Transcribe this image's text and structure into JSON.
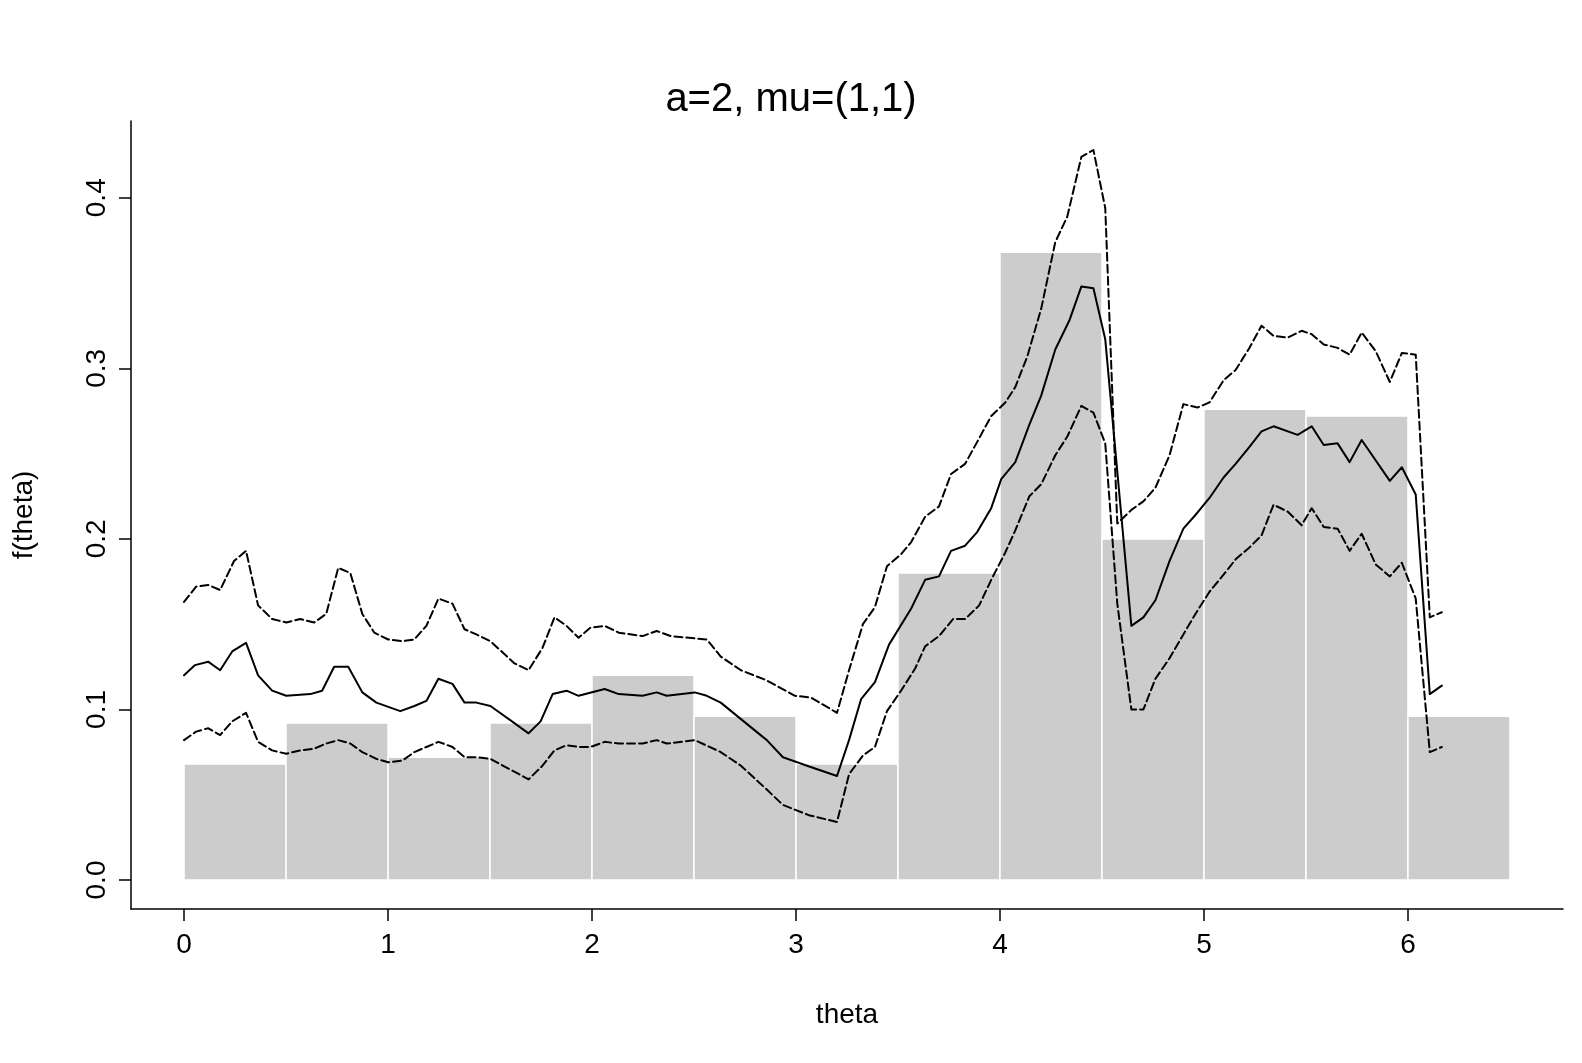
{
  "chart_data": {
    "type": "histogram",
    "title": "a=2, mu=(1,1)",
    "xlabel": "theta",
    "ylabel": "f(theta)",
    "bins": [
      0,
      0.5,
      1,
      1.5,
      2,
      2.5,
      3,
      3.5,
      4,
      4.5,
      5,
      5.5,
      6,
      6.5
    ],
    "values": [
      0.068,
      0.092,
      0.072,
      0.092,
      0.12,
      0.096,
      0.068,
      0.18,
      0.368,
      0.2,
      0.276,
      0.272,
      0.096
    ],
    "color": "#cccccc",
    "series": [
      {
        "type": "line",
        "color": "#000000",
        "line_style": "solid",
        "x": [
          0,
          0.054,
          0.118,
          0.177,
          0.236,
          0.304,
          0.363,
          0.432,
          0.501,
          0.619,
          0.677,
          0.736,
          0.805,
          0.874,
          0.943,
          1.06,
          1.129,
          1.188,
          1.247,
          1.316,
          1.375,
          1.433,
          1.502,
          1.689,
          1.748,
          1.807,
          1.875,
          1.934,
          2.062,
          2.131,
          2.248,
          2.317,
          2.366,
          2.504,
          2.563,
          2.631,
          2.857,
          2.936,
          3.054,
          3.201,
          3.26,
          3.319,
          3.387,
          3.456,
          3.564,
          3.633,
          3.701,
          3.76,
          3.829,
          3.888,
          3.957,
          4.006,
          4.075,
          4.144,
          4.202,
          4.271,
          4.34,
          4.399,
          4.458,
          4.516,
          4.644,
          4.703,
          4.762,
          4.831,
          4.899,
          4.958,
          5.027,
          5.096,
          5.155,
          5.223,
          5.282,
          5.341,
          5.459,
          5.528,
          5.587,
          5.655,
          5.714,
          5.773,
          5.911,
          5.97,
          6.038,
          6.107,
          6.166
        ],
        "values": [
          0.12,
          0.126,
          0.128,
          0.123,
          0.134,
          0.139,
          0.12,
          0.111,
          0.108,
          0.109,
          0.111,
          0.125,
          0.125,
          0.11,
          0.104,
          0.099,
          0.102,
          0.105,
          0.118,
          0.115,
          0.104,
          0.104,
          0.102,
          0.086,
          0.093,
          0.109,
          0.111,
          0.108,
          0.112,
          0.109,
          0.108,
          0.11,
          0.108,
          0.11,
          0.108,
          0.104,
          0.082,
          0.072,
          0.067,
          0.061,
          0.082,
          0.106,
          0.116,
          0.138,
          0.159,
          0.176,
          0.178,
          0.193,
          0.196,
          0.204,
          0.218,
          0.235,
          0.245,
          0.267,
          0.284,
          0.311,
          0.328,
          0.348,
          0.347,
          0.317,
          0.149,
          0.154,
          0.164,
          0.187,
          0.206,
          0.214,
          0.224,
          0.236,
          0.244,
          0.254,
          0.263,
          0.266,
          0.261,
          0.266,
          0.255,
          0.256,
          0.245,
          0.258,
          0.234,
          0.242,
          0.226,
          0.109,
          0.114
        ]
      },
      {
        "type": "line",
        "color": "#000000",
        "line_style": "dashed",
        "x": [
          0,
          0.059,
          0.118,
          0.177,
          0.245,
          0.304,
          0.363,
          0.432,
          0.501,
          0.569,
          0.638,
          0.697,
          0.756,
          0.815,
          0.874,
          0.933,
          1.001,
          1.07,
          1.129,
          1.188,
          1.247,
          1.316,
          1.375,
          1.433,
          1.502,
          1.62,
          1.689,
          1.757,
          1.816,
          1.875,
          1.934,
          1.993,
          2.062,
          2.131,
          2.248,
          2.317,
          2.386,
          2.563,
          2.631,
          2.73,
          2.857,
          2.995,
          3.073,
          3.201,
          3.26,
          3.328,
          3.387,
          3.446,
          3.515,
          3.564,
          3.633,
          3.701,
          3.76,
          3.829,
          3.898,
          3.957,
          4.026,
          4.075,
          4.134,
          4.202,
          4.271,
          4.33,
          4.399,
          4.458,
          4.516,
          4.575,
          4.644,
          4.703,
          4.762,
          4.831,
          4.899,
          4.968,
          5.027,
          5.096,
          5.155,
          5.223,
          5.282,
          5.341,
          5.41,
          5.479,
          5.528,
          5.587,
          5.655,
          5.714,
          5.773,
          5.842,
          5.911,
          5.97,
          6.038,
          6.107,
          6.166
        ],
        "values": [
          0.163,
          0.172,
          0.173,
          0.17,
          0.187,
          0.193,
          0.161,
          0.153,
          0.151,
          0.153,
          0.151,
          0.156,
          0.183,
          0.18,
          0.156,
          0.145,
          0.141,
          0.14,
          0.141,
          0.149,
          0.165,
          0.162,
          0.147,
          0.144,
          0.14,
          0.127,
          0.123,
          0.136,
          0.154,
          0.149,
          0.142,
          0.148,
          0.149,
          0.145,
          0.143,
          0.146,
          0.143,
          0.141,
          0.131,
          0.123,
          0.117,
          0.108,
          0.107,
          0.098,
          0.123,
          0.15,
          0.16,
          0.184,
          0.191,
          0.198,
          0.213,
          0.219,
          0.238,
          0.244,
          0.259,
          0.272,
          0.28,
          0.289,
          0.307,
          0.335,
          0.374,
          0.389,
          0.424,
          0.428,
          0.394,
          0.209,
          0.217,
          0.222,
          0.23,
          0.249,
          0.279,
          0.277,
          0.28,
          0.293,
          0.299,
          0.312,
          0.325,
          0.319,
          0.318,
          0.322,
          0.32,
          0.314,
          0.312,
          0.308,
          0.321,
          0.31,
          0.292,
          0.309,
          0.308,
          0.154,
          0.157
        ]
      },
      {
        "type": "line",
        "color": "#000000",
        "line_style": "dashed",
        "x": [
          0,
          0.059,
          0.118,
          0.177,
          0.236,
          0.304,
          0.363,
          0.432,
          0.501,
          0.569,
          0.638,
          0.697,
          0.756,
          0.815,
          0.874,
          0.943,
          1.001,
          1.07,
          1.129,
          1.188,
          1.247,
          1.316,
          1.375,
          1.433,
          1.502,
          1.689,
          1.757,
          1.816,
          1.875,
          1.934,
          1.993,
          2.062,
          2.131,
          2.248,
          2.317,
          2.366,
          2.504,
          2.631,
          2.73,
          2.857,
          2.936,
          3.063,
          3.201,
          3.26,
          3.328,
          3.387,
          3.446,
          3.515,
          3.584,
          3.633,
          3.701,
          3.77,
          3.829,
          3.898,
          3.957,
          4.026,
          4.075,
          4.144,
          4.202,
          4.271,
          4.33,
          4.399,
          4.458,
          4.516,
          4.575,
          4.644,
          4.703,
          4.762,
          4.831,
          4.899,
          4.958,
          5.027,
          5.096,
          5.155,
          5.223,
          5.282,
          5.341,
          5.41,
          5.479,
          5.528,
          5.587,
          5.655,
          5.714,
          5.773,
          5.842,
          5.911,
          5.97,
          6.038,
          6.107,
          6.166
        ],
        "values": [
          0.082,
          0.087,
          0.089,
          0.085,
          0.093,
          0.098,
          0.081,
          0.076,
          0.074,
          0.076,
          0.077,
          0.08,
          0.082,
          0.08,
          0.075,
          0.071,
          0.069,
          0.07,
          0.075,
          0.078,
          0.081,
          0.078,
          0.072,
          0.072,
          0.071,
          0.059,
          0.067,
          0.076,
          0.079,
          0.078,
          0.078,
          0.081,
          0.08,
          0.08,
          0.082,
          0.08,
          0.082,
          0.075,
          0.067,
          0.053,
          0.044,
          0.038,
          0.034,
          0.062,
          0.073,
          0.078,
          0.099,
          0.111,
          0.124,
          0.137,
          0.143,
          0.153,
          0.153,
          0.161,
          0.176,
          0.192,
          0.205,
          0.225,
          0.232,
          0.249,
          0.26,
          0.278,
          0.274,
          0.256,
          0.162,
          0.1,
          0.1,
          0.118,
          0.13,
          0.144,
          0.156,
          0.169,
          0.179,
          0.188,
          0.195,
          0.202,
          0.22,
          0.216,
          0.208,
          0.218,
          0.207,
          0.206,
          0.193,
          0.203,
          0.185,
          0.178,
          0.186,
          0.165,
          0.075,
          0.078
        ]
      }
    ],
    "xlim": [
      -0.26,
      6.76
    ],
    "ylim": [
      -0.017,
      0.445
    ],
    "xticks": [
      0,
      1,
      2,
      3,
      4,
      5,
      6
    ],
    "yticks": [
      {
        "value": 0,
        "label": "0.0"
      },
      {
        "value": 0.1,
        "label": "0.1"
      },
      {
        "value": 0.2,
        "label": "0.2"
      },
      {
        "value": 0.3,
        "label": "0.3"
      },
      {
        "value": 0.4,
        "label": "0.4"
      }
    ],
    "grid": false
  }
}
